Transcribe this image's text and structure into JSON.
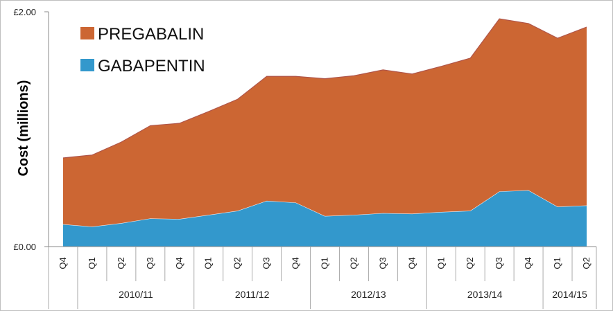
{
  "chart_data": {
    "type": "area",
    "stacked": true,
    "ylabel": "Cost (millions)",
    "ylim": [
      0,
      2.0
    ],
    "y_tick_labels": [
      "£0.00",
      "£2.00"
    ],
    "x": [
      "Q4",
      "Q1",
      "Q2",
      "Q3",
      "Q4",
      "Q1",
      "Q2",
      "Q3",
      "Q4",
      "Q1",
      "Q2",
      "Q3",
      "Q4",
      "Q1",
      "Q2",
      "Q3",
      "Q4",
      "Q1",
      "Q2"
    ],
    "groups": [
      {
        "label": "",
        "span": 1
      },
      {
        "label": "2010/11",
        "span": 4
      },
      {
        "label": "2011/12",
        "span": 4
      },
      {
        "label": "2012/13",
        "span": 4
      },
      {
        "label": "2013/14",
        "span": 4
      },
      {
        "label": "2014/15",
        "span": 2
      }
    ],
    "series": [
      {
        "name": "GABAPENTIN",
        "color": "#3398cc",
        "values": [
          0.19,
          0.17,
          0.2,
          0.24,
          0.235,
          0.27,
          0.305,
          0.39,
          0.375,
          0.26,
          0.27,
          0.285,
          0.28,
          0.295,
          0.305,
          0.47,
          0.48,
          0.34,
          0.35
        ]
      },
      {
        "name": "PREGABALIN",
        "color": "#cc6633",
        "values": [
          0.565,
          0.61,
          0.69,
          0.79,
          0.815,
          0.88,
          0.95,
          1.06,
          1.075,
          1.17,
          1.185,
          1.22,
          1.19,
          1.24,
          1.3,
          1.47,
          1.42,
          1.435,
          1.52
        ]
      }
    ],
    "legend": [
      "PREGABALIN",
      "GABAPENTIN"
    ],
    "legend_placement": "top-left",
    "grid": false
  }
}
